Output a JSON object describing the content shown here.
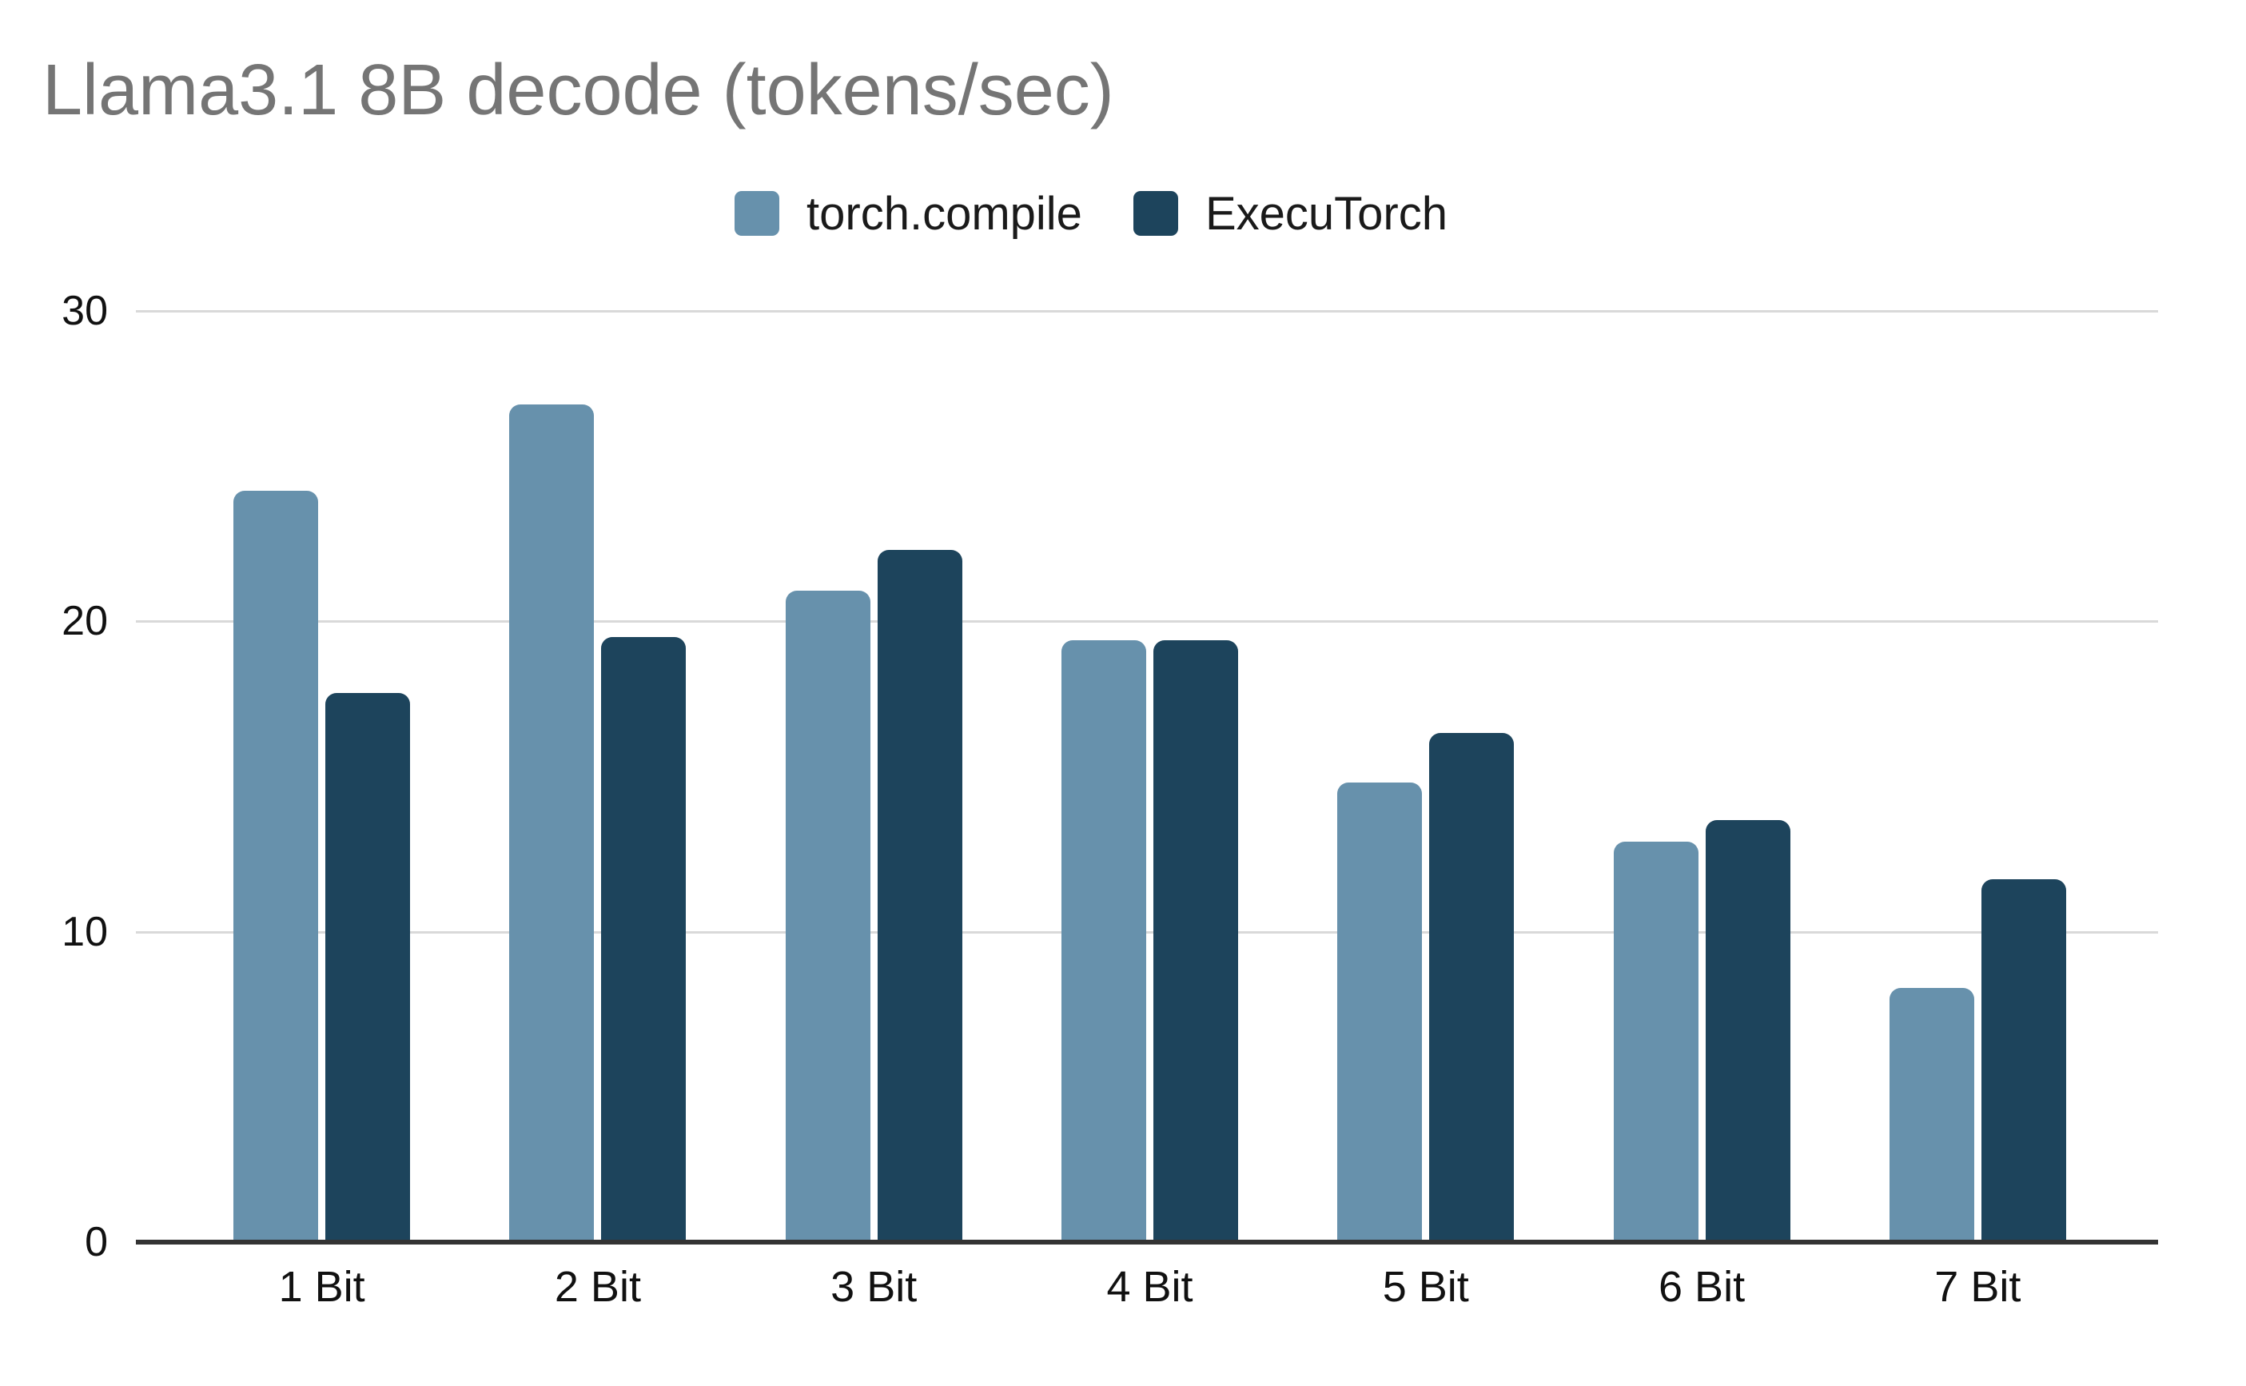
{
  "title": "Llama3.1 8B decode (tokens/sec)",
  "chart_data": {
    "type": "bar",
    "title": "Llama3.1 8B decode (tokens/sec)",
    "categories": [
      "1 Bit",
      "2 Bit",
      "3 Bit",
      "4 Bit",
      "5 Bit",
      "6 Bit",
      "7 Bit"
    ],
    "series": [
      {
        "name": "torch.compile",
        "color": "#6791ac",
        "values": [
          24.2,
          27.0,
          21.0,
          19.4,
          14.8,
          12.9,
          8.2
        ]
      },
      {
        "name": "ExecuTorch",
        "color": "#1d445c",
        "values": [
          17.7,
          19.5,
          22.3,
          19.4,
          16.4,
          13.6,
          11.7
        ]
      }
    ],
    "xlabel": "",
    "ylabel": "",
    "ylim": [
      0,
      30
    ],
    "yticks": [
      0,
      10,
      20,
      30
    ],
    "grid": true,
    "legend_position": "top-center",
    "colors": {
      "title_text": "#757575",
      "axis_text": "#111111",
      "gridline": "#d9d9d9",
      "axis_baseline": "#333333",
      "background": "#ffffff"
    }
  }
}
